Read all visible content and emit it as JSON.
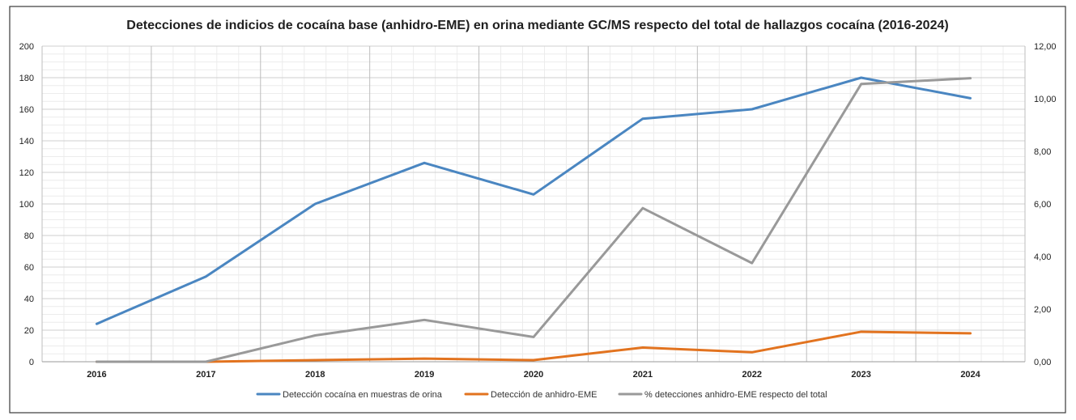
{
  "chart_data": {
    "type": "line",
    "title": "Detecciones de indicios de cocaína base (anhidro-EME) en orina mediante GC/MS respecto del total de hallazgos cocaína (2016-2024)",
    "categories": [
      "2016",
      "2017",
      "2018",
      "2019",
      "2020",
      "2021",
      "2022",
      "2023",
      "2024"
    ],
    "y_left": {
      "range": [
        0,
        200
      ],
      "ticks": [
        "0",
        "20",
        "40",
        "60",
        "80",
        "100",
        "120",
        "140",
        "160",
        "180",
        "200"
      ]
    },
    "y_right": {
      "range": [
        0,
        12
      ],
      "ticks": [
        "0,00",
        "2,00",
        "4,00",
        "6,00",
        "8,00",
        "10,00",
        "12,00"
      ]
    },
    "series": [
      {
        "name": "Detección cocaína en muestras de orina",
        "axis": "left",
        "color": "#4a86c1",
        "values": [
          24,
          54,
          100,
          126,
          106,
          154,
          160,
          180,
          167
        ]
      },
      {
        "name": "Detección de anhidro-EME",
        "axis": "left",
        "color": "#e2731f",
        "values": [
          0,
          0,
          1,
          2,
          1,
          9,
          6,
          19,
          18
        ]
      },
      {
        "name": "% detecciones anhidro-EME respecto del total",
        "axis": "right",
        "color": "#999999",
        "values": [
          0,
          0,
          1.0,
          1.59,
          0.94,
          5.84,
          3.75,
          10.56,
          10.78
        ]
      }
    ],
    "grid": true,
    "legend_position": "bottom"
  }
}
